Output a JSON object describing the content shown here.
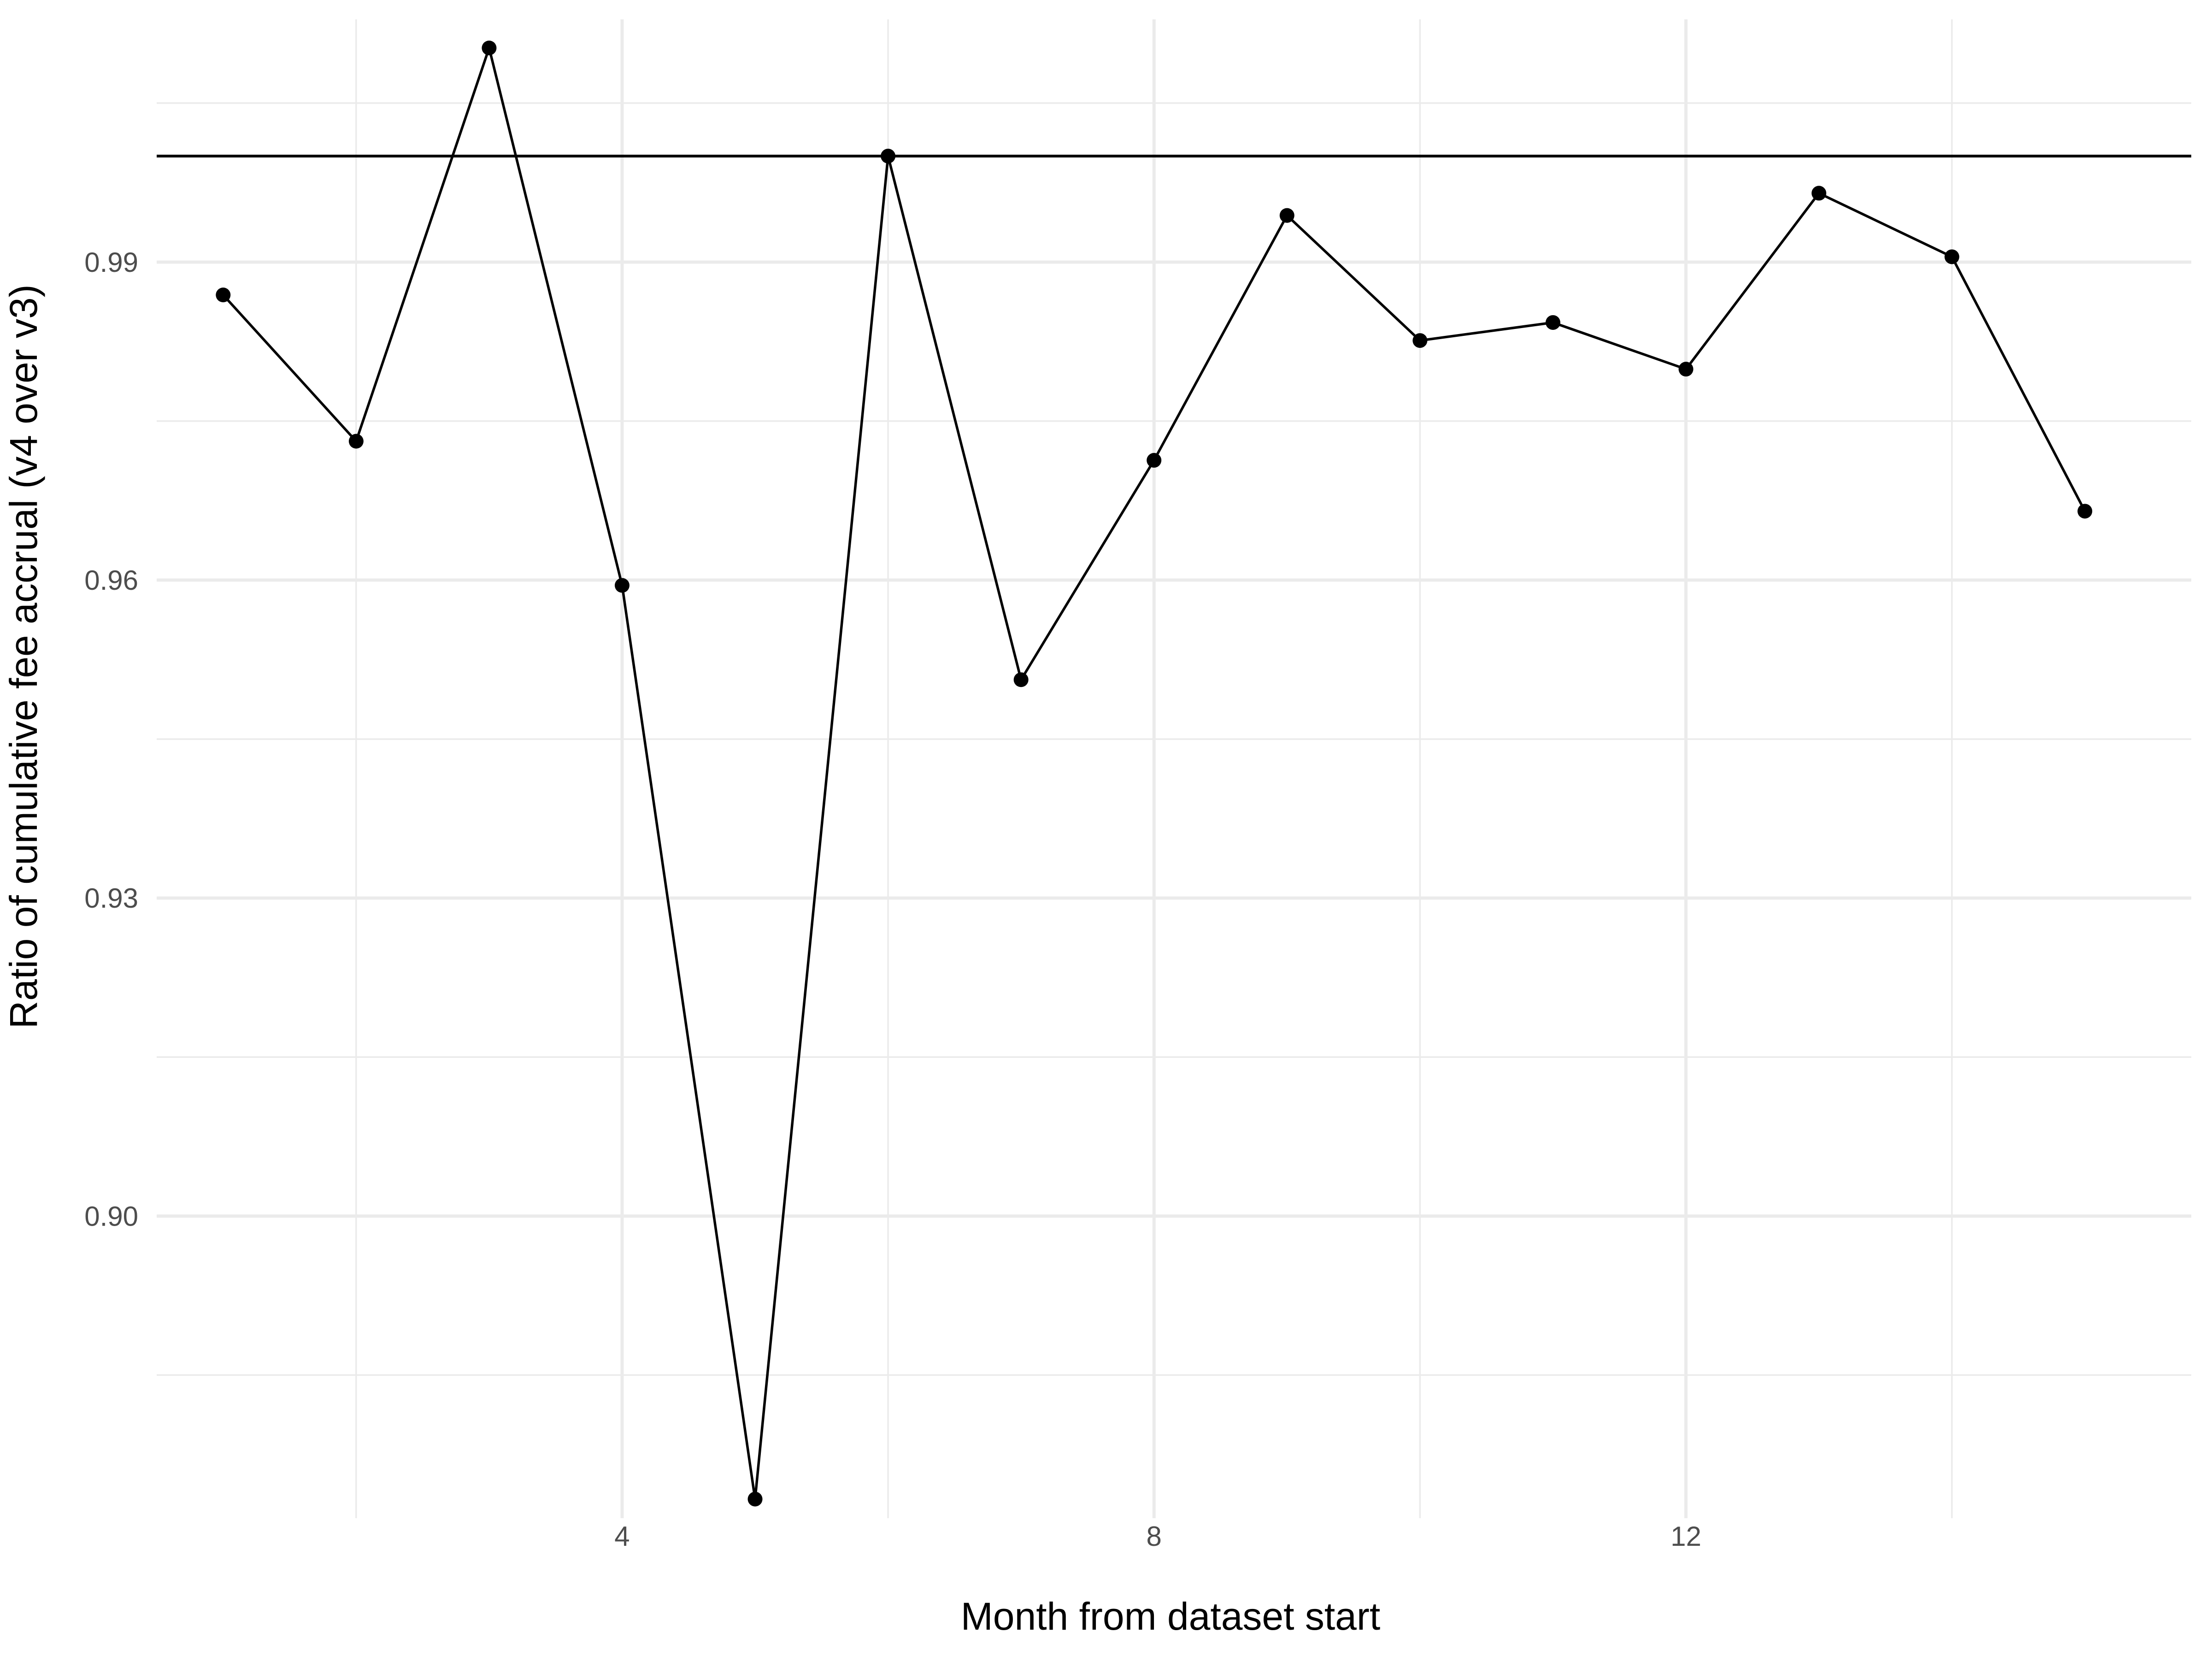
{
  "chart_data": {
    "type": "line",
    "xlabel": "Month from dataset start",
    "ylabel": "Ratio of cumulative fee accrual (v4 over v3)",
    "xlim": [
      0.5,
      15.8
    ],
    "ylim": [
      0.8715,
      1.0129
    ],
    "x_ticks": [
      4,
      8,
      12
    ],
    "x_tick_labels": [
      "4",
      "8",
      "12"
    ],
    "y_ticks": [
      0.9,
      0.93,
      0.96,
      0.99
    ],
    "y_tick_labels": [
      "0.90",
      "0.93",
      "0.96",
      "0.99"
    ],
    "x_minor_ticks": [
      2,
      6,
      10,
      14
    ],
    "y_minor_ticks": [
      0.885,
      0.915,
      0.945,
      0.975,
      1.005
    ],
    "grid": true,
    "reference_line": {
      "orientation": "horizontal",
      "y": 1.0
    },
    "series": [
      {
        "x": [
          1,
          2,
          3,
          4,
          5,
          6,
          7,
          8,
          9,
          10,
          11,
          12,
          13,
          14,
          15
        ],
        "y": [
          0.9869,
          0.9731,
          1.0102,
          0.9595,
          0.8733,
          1.0,
          0.9506,
          0.9713,
          0.9944,
          0.9826,
          0.9843,
          0.9799,
          0.9965,
          0.9905,
          0.9665
        ],
        "color": "#000000"
      }
    ]
  }
}
